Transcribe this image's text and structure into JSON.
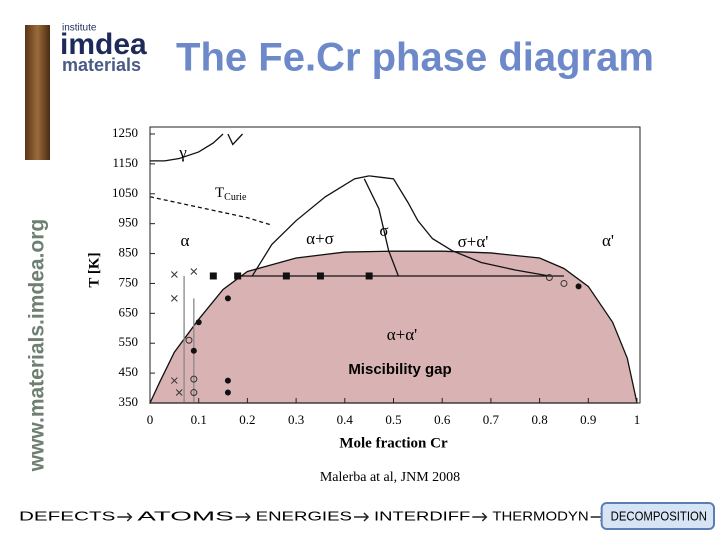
{
  "header": {
    "logo_top": "institute",
    "logo_main": "imdea",
    "logo_sub": "materials",
    "url": "www.materials.imdea.org",
    "title": "The Fe.Cr phase diagram"
  },
  "chart_data": {
    "type": "phase-diagram",
    "xlabel": "Mole fraction Cr",
    "ylabel": "T [K]",
    "xlim": [
      0,
      1
    ],
    "ylim": [
      350,
      1250
    ],
    "xticks": [
      0,
      0.1,
      0.2,
      0.3,
      0.4,
      0.5,
      0.6,
      0.7,
      0.8,
      0.9,
      1
    ],
    "yticks": [
      350,
      450,
      550,
      650,
      750,
      850,
      950,
      1050,
      1150,
      1250
    ],
    "region_labels": [
      "γ",
      "α",
      "α+σ",
      "σ",
      "σ+α'",
      "α'",
      "α+α'"
    ],
    "curie_label": "T",
    "curie_sub": "Curie",
    "annotation": "Miscibility gap",
    "series": [
      {
        "style": "fill",
        "color": "#d9b3b3",
        "x": [
          0,
          0.02,
          0.05,
          0.1,
          0.15,
          0.2,
          0.3,
          0.4,
          0.5,
          0.6,
          0.7,
          0.8,
          0.85,
          0.9,
          0.95,
          0.98,
          1
        ],
        "values": [
          350,
          420,
          520,
          630,
          730,
          790,
          835,
          855,
          858,
          858,
          852,
          835,
          800,
          740,
          620,
          500,
          350
        ]
      },
      {
        "style": "line",
        "color": "#111111",
        "x": [
          0.21,
          0.25,
          0.3,
          0.36,
          0.42,
          0.45
        ],
        "values": [
          775,
          880,
          960,
          1040,
          1100,
          1110
        ]
      },
      {
        "style": "line",
        "color": "#111111",
        "x": [
          0.45,
          0.5,
          0.53,
          0.55,
          0.58,
          0.62,
          0.68,
          0.75,
          0.82
        ],
        "values": [
          1110,
          1100,
          1020,
          960,
          900,
          860,
          820,
          795,
          775
        ]
      },
      {
        "style": "line",
        "color": "#111111",
        "x": [
          0.44,
          0.47,
          0.49,
          0.51
        ],
        "values": [
          1100,
          1000,
          860,
          775
        ]
      },
      {
        "style": "line",
        "color": "#111111",
        "x": [
          0.18,
          0.85
        ],
        "values": [
          775,
          775
        ]
      },
      {
        "style": "line",
        "color": "#111111",
        "x": [
          0,
          0.03,
          0.06,
          0.1,
          0.13,
          0.15
        ],
        "values": [
          1160,
          1160,
          1168,
          1190,
          1220,
          1250
        ]
      },
      {
        "style": "line",
        "color": "#111111",
        "x": [
          0.16,
          0.17,
          0.19
        ],
        "values": [
          1250,
          1215,
          1250
        ]
      },
      {
        "style": "dashed",
        "color": "#111111",
        "x": [
          0,
          0.1,
          0.2,
          0.25
        ],
        "values": [
          1040,
          1005,
          970,
          945
        ]
      },
      {
        "style": "line",
        "color": "#888888",
        "x": [
          0.07,
          0.07
        ],
        "values": [
          350,
          775
        ]
      },
      {
        "style": "line",
        "color": "#888888",
        "x": [
          0.09,
          0.09
        ],
        "values": [
          350,
          700
        ]
      },
      {
        "style": "square",
        "color": "#111111",
        "x": [
          0.13,
          0.18,
          0.28,
          0.35,
          0.45
        ],
        "values": [
          775,
          775,
          775,
          775,
          775
        ]
      },
      {
        "style": "circle",
        "color": "#111111",
        "x": [
          0.1,
          0.09,
          0.16,
          0.16,
          0.16,
          0.88
        ],
        "values": [
          620,
          525,
          700,
          425,
          385,
          740
        ]
      },
      {
        "style": "open-circle",
        "color": "#333333",
        "x": [
          0.08,
          0.09,
          0.09,
          0.82,
          0.85
        ],
        "values": [
          560,
          430,
          385,
          770,
          750
        ]
      },
      {
        "style": "cross",
        "color": "#333333",
        "x": [
          0.05,
          0.05,
          0.05,
          0.06,
          0.09
        ],
        "values": [
          780,
          700,
          425,
          385,
          790
        ]
      }
    ]
  },
  "footer": {
    "citation": "Malerba at al, JNM 2008",
    "steps": [
      "DEFECTS",
      "ATOMS",
      "ENERGIES",
      "INTERDIFF",
      "THERMODYN",
      "DECOMPOSITION"
    ]
  }
}
